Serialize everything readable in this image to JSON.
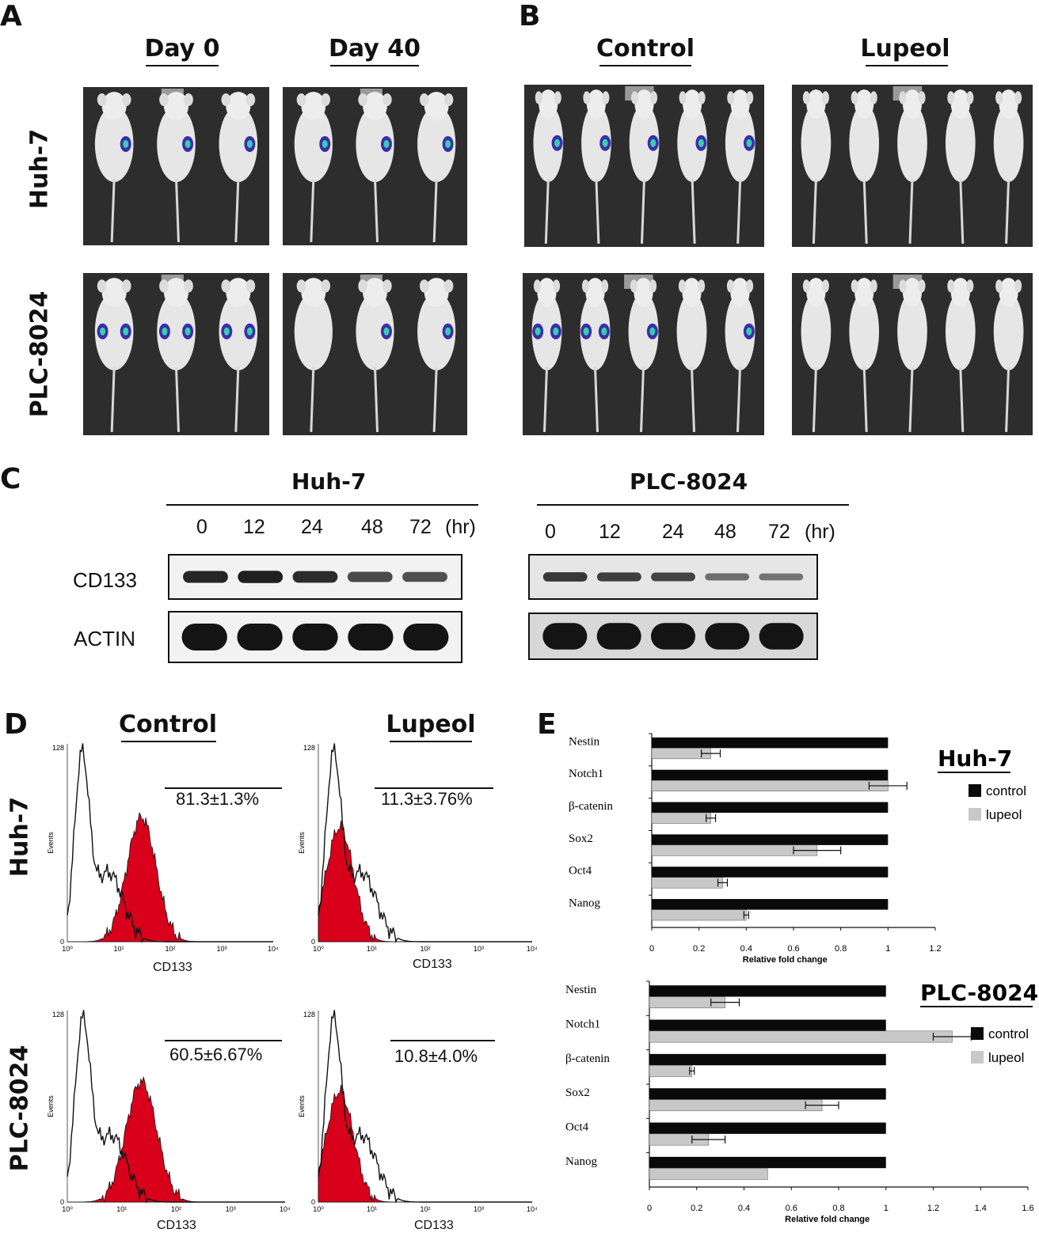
{
  "panels": {
    "A": {
      "letter": "A",
      "headers": [
        "Day  0",
        "Day  40"
      ],
      "rows": [
        "Huh-7",
        "PLC-8024"
      ]
    },
    "B": {
      "letter": "B",
      "headers": [
        "Control",
        "Lupeol"
      ]
    },
    "C": {
      "letter": "C",
      "huh7_title": "Huh-7",
      "plc_title": "PLC-8024",
      "timepoints": [
        "0",
        "12",
        "24",
        "48",
        "72",
        "(hr)"
      ],
      "row_labels": [
        "CD133",
        "ACTIN"
      ],
      "cd133_intensity_huh7": [
        0.85,
        0.9,
        0.8,
        0.55,
        0.5
      ],
      "cd133_intensity_plc": [
        0.7,
        0.65,
        0.6,
        0.25,
        0.2
      ]
    },
    "D": {
      "letter": "D",
      "headers": [
        "Control",
        "Lupeol"
      ],
      "rows": [
        "Huh-7",
        "PLC-8024"
      ],
      "percentages": [
        "81.3±1.3%",
        "11.3±3.76%",
        "60.5±6.67%",
        "10.8±4.0%"
      ],
      "xlabel": "CD133",
      "ylabel": "Events",
      "ymax": "128",
      "ymin": "0",
      "xticks": [
        "10⁰",
        "10¹",
        "10²",
        "10³",
        "10⁴"
      ]
    },
    "E": {
      "letter": "E",
      "xlabel": "Relative fold change",
      "legend": [
        "control",
        "lupeol"
      ],
      "colors": {
        "control": "#0a0a0a",
        "lupeol": "#c8c8c8"
      }
    }
  },
  "chart_data": [
    {
      "type": "bar",
      "title": "Huh-7",
      "categories": [
        "Nestin",
        "Notch1",
        "β-catenin",
        "Sox2",
        "Oct4",
        "Nanog"
      ],
      "series": [
        {
          "name": "control",
          "values": [
            1,
            1,
            1,
            1,
            1,
            1
          ]
        },
        {
          "name": "lupeol",
          "values": [
            0.25,
            1.0,
            0.25,
            0.7,
            0.3,
            0.4
          ],
          "errors": [
            0.04,
            0.08,
            0.02,
            0.1,
            0.02,
            0.01
          ]
        }
      ],
      "xlim": [
        0,
        1.2
      ],
      "xticks": [
        "0",
        "0.2",
        "0.4",
        "0.6",
        "0.8",
        "1",
        "1.2"
      ],
      "xlabel": "Relative fold change"
    },
    {
      "type": "bar",
      "title": "PLC-8024",
      "categories": [
        "Nestin",
        "Notch1",
        "β-catenin",
        "Sox2",
        "Oct4",
        "Nanog"
      ],
      "series": [
        {
          "name": "control",
          "values": [
            1,
            1,
            1,
            1,
            1,
            1
          ]
        },
        {
          "name": "lupeol",
          "values": [
            0.32,
            1.28,
            0.18,
            0.73,
            0.25,
            0.5
          ],
          "errors": [
            0.06,
            0.08,
            0.01,
            0.07,
            0.07,
            0.0
          ]
        }
      ],
      "xlim": [
        0,
        1.6
      ],
      "xticks": [
        "0",
        "0.2",
        "0.4",
        "0.6",
        "0.8",
        "1",
        "1.2",
        "1.4",
        "1.6"
      ],
      "xlabel": "Relative fold change"
    }
  ]
}
